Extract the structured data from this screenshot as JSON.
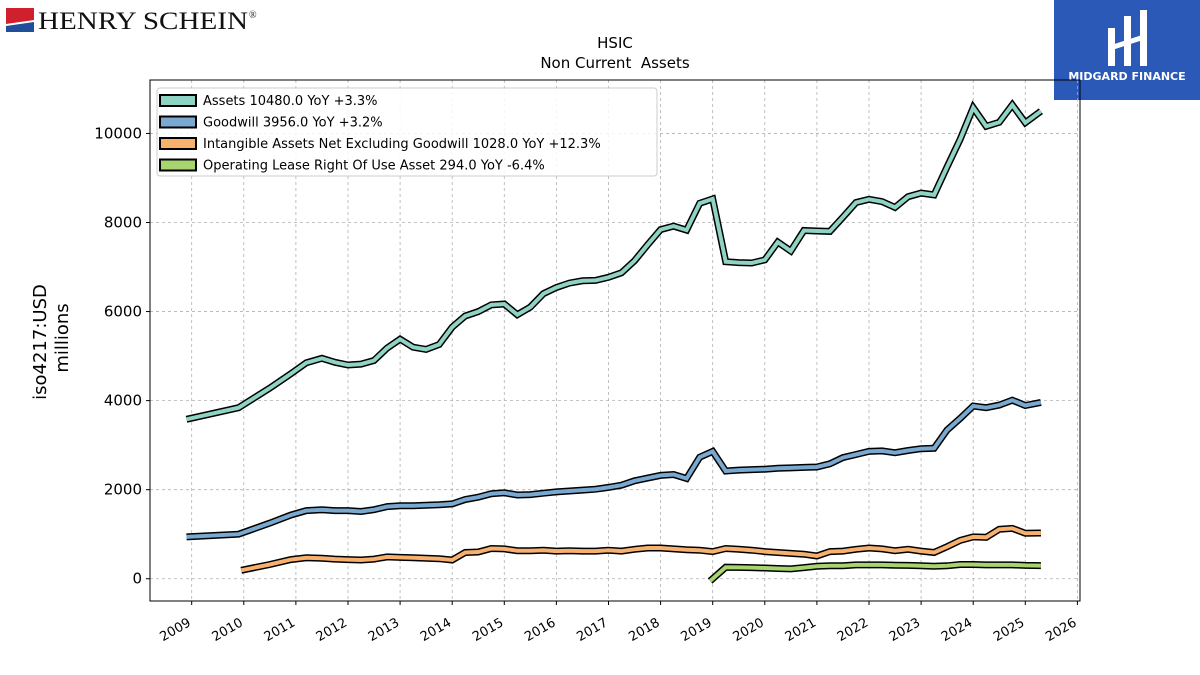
{
  "branding": {
    "company_logo_text": "HENRY SCHEIN",
    "registered_mark": "®",
    "company_logo_colors": [
      "#d0202e",
      "#1f4e9a",
      "#111111"
    ],
    "watermark_logo_text": "MIDGARD FINANCE",
    "watermark_bg": "#2b59b8"
  },
  "chart_data": {
    "type": "line",
    "title": "HSIC",
    "subtitle": "Non Current  Assets",
    "ylabel": "iso4217:USD",
    "ylabel2": "millions",
    "xlabel": "",
    "xlim": [
      2008.2,
      2026.05
    ],
    "ylim": [
      -500,
      11200
    ],
    "yticks": [
      0,
      2000,
      4000,
      6000,
      8000,
      10000
    ],
    "xticks": [
      2009,
      2010,
      2011,
      2012,
      2013,
      2014,
      2015,
      2016,
      2017,
      2018,
      2019,
      2020,
      2021,
      2022,
      2023,
      2024,
      2025,
      2026
    ],
    "grid": true,
    "legend_position": "top-left",
    "series": [
      {
        "name": "Assets",
        "legend": "Assets  10480.0 YoY +3.3%",
        "color": "#8ed3c4",
        "points": [
          [
            2008.9,
            3580
          ],
          [
            2009.9,
            3840
          ],
          [
            2010.5,
            4280
          ],
          [
            2010.9,
            4600
          ],
          [
            2011.2,
            4850
          ],
          [
            2011.5,
            4950
          ],
          [
            2011.75,
            4860
          ],
          [
            2012.0,
            4800
          ],
          [
            2012.25,
            4820
          ],
          [
            2012.5,
            4900
          ],
          [
            2012.75,
            5180
          ],
          [
            2013.0,
            5380
          ],
          [
            2013.25,
            5200
          ],
          [
            2013.5,
            5150
          ],
          [
            2013.75,
            5260
          ],
          [
            2014.0,
            5650
          ],
          [
            2014.25,
            5900
          ],
          [
            2014.5,
            6000
          ],
          [
            2014.75,
            6150
          ],
          [
            2015.0,
            6170
          ],
          [
            2015.25,
            5930
          ],
          [
            2015.5,
            6100
          ],
          [
            2015.75,
            6400
          ],
          [
            2016.0,
            6540
          ],
          [
            2016.25,
            6640
          ],
          [
            2016.5,
            6690
          ],
          [
            2016.75,
            6700
          ],
          [
            2017.0,
            6770
          ],
          [
            2017.25,
            6870
          ],
          [
            2017.5,
            7140
          ],
          [
            2017.75,
            7500
          ],
          [
            2018.0,
            7840
          ],
          [
            2018.25,
            7920
          ],
          [
            2018.5,
            7830
          ],
          [
            2018.75,
            8430
          ],
          [
            2019.0,
            8530
          ],
          [
            2019.25,
            7120
          ],
          [
            2019.5,
            7100
          ],
          [
            2019.75,
            7090
          ],
          [
            2020.0,
            7160
          ],
          [
            2020.25,
            7560
          ],
          [
            2020.5,
            7360
          ],
          [
            2020.75,
            7820
          ],
          [
            2021.0,
            7810
          ],
          [
            2021.25,
            7800
          ],
          [
            2021.5,
            8120
          ],
          [
            2021.75,
            8450
          ],
          [
            2022.0,
            8520
          ],
          [
            2022.25,
            8470
          ],
          [
            2022.5,
            8340
          ],
          [
            2022.75,
            8580
          ],
          [
            2023.0,
            8660
          ],
          [
            2023.25,
            8620
          ],
          [
            2023.5,
            9250
          ],
          [
            2023.75,
            9870
          ],
          [
            2024.0,
            10580
          ],
          [
            2024.25,
            10160
          ],
          [
            2024.5,
            10250
          ],
          [
            2024.75,
            10640
          ],
          [
            2025.0,
            10240
          ],
          [
            2025.3,
            10500
          ]
        ]
      },
      {
        "name": "Goodwill",
        "legend": "Goodwill  3956.0 YoY +3.2%",
        "color": "#79a9d1",
        "points": [
          [
            2008.9,
            940
          ],
          [
            2009.9,
            1000
          ],
          [
            2010.5,
            1250
          ],
          [
            2010.9,
            1430
          ],
          [
            2011.2,
            1530
          ],
          [
            2011.5,
            1550
          ],
          [
            2011.75,
            1530
          ],
          [
            2012.0,
            1530
          ],
          [
            2012.25,
            1510
          ],
          [
            2012.5,
            1550
          ],
          [
            2012.75,
            1620
          ],
          [
            2013.0,
            1640
          ],
          [
            2013.25,
            1640
          ],
          [
            2013.5,
            1650
          ],
          [
            2013.75,
            1660
          ],
          [
            2014.0,
            1680
          ],
          [
            2014.25,
            1780
          ],
          [
            2014.5,
            1830
          ],
          [
            2014.75,
            1910
          ],
          [
            2015.0,
            1930
          ],
          [
            2015.25,
            1880
          ],
          [
            2015.5,
            1890
          ],
          [
            2015.75,
            1920
          ],
          [
            2016.0,
            1950
          ],
          [
            2016.25,
            1970
          ],
          [
            2016.5,
            1990
          ],
          [
            2016.75,
            2010
          ],
          [
            2017.0,
            2050
          ],
          [
            2017.25,
            2100
          ],
          [
            2017.5,
            2200
          ],
          [
            2017.75,
            2260
          ],
          [
            2018.0,
            2320
          ],
          [
            2018.25,
            2340
          ],
          [
            2018.5,
            2250
          ],
          [
            2018.75,
            2730
          ],
          [
            2019.0,
            2860
          ],
          [
            2019.25,
            2420
          ],
          [
            2019.5,
            2440
          ],
          [
            2019.75,
            2450
          ],
          [
            2020.0,
            2460
          ],
          [
            2020.25,
            2480
          ],
          [
            2020.5,
            2490
          ],
          [
            2020.75,
            2500
          ],
          [
            2021.0,
            2510
          ],
          [
            2021.25,
            2580
          ],
          [
            2021.5,
            2720
          ],
          [
            2021.75,
            2790
          ],
          [
            2022.0,
            2860
          ],
          [
            2022.25,
            2870
          ],
          [
            2022.5,
            2830
          ],
          [
            2022.75,
            2880
          ],
          [
            2023.0,
            2920
          ],
          [
            2023.25,
            2930
          ],
          [
            2023.5,
            3340
          ],
          [
            2023.75,
            3600
          ],
          [
            2024.0,
            3880
          ],
          [
            2024.25,
            3840
          ],
          [
            2024.5,
            3900
          ],
          [
            2024.75,
            4010
          ],
          [
            2025.0,
            3890
          ],
          [
            2025.3,
            3960
          ]
        ]
      },
      {
        "name": "Intangible Assets Net Excluding Goodwill",
        "legend": "Intangible Assets Net Excluding Goodwill  1028.0 YoY +12.3%",
        "color": "#f7b06e",
        "points": [
          [
            2009.95,
            190
          ],
          [
            2010.5,
            320
          ],
          [
            2010.9,
            430
          ],
          [
            2011.2,
            470
          ],
          [
            2011.5,
            460
          ],
          [
            2011.75,
            440
          ],
          [
            2012.0,
            430
          ],
          [
            2012.25,
            420
          ],
          [
            2012.5,
            440
          ],
          [
            2012.75,
            490
          ],
          [
            2013.0,
            480
          ],
          [
            2013.25,
            470
          ],
          [
            2013.5,
            460
          ],
          [
            2013.75,
            450
          ],
          [
            2014.0,
            420
          ],
          [
            2014.25,
            590
          ],
          [
            2014.5,
            600
          ],
          [
            2014.75,
            680
          ],
          [
            2015.0,
            670
          ],
          [
            2015.25,
            630
          ],
          [
            2015.5,
            630
          ],
          [
            2015.75,
            640
          ],
          [
            2016.0,
            620
          ],
          [
            2016.25,
            630
          ],
          [
            2016.5,
            620
          ],
          [
            2016.75,
            620
          ],
          [
            2017.0,
            640
          ],
          [
            2017.25,
            620
          ],
          [
            2017.5,
            660
          ],
          [
            2017.75,
            690
          ],
          [
            2018.0,
            690
          ],
          [
            2018.25,
            670
          ],
          [
            2018.5,
            650
          ],
          [
            2018.75,
            640
          ],
          [
            2019.0,
            610
          ],
          [
            2019.25,
            680
          ],
          [
            2019.5,
            660
          ],
          [
            2019.75,
            640
          ],
          [
            2020.0,
            610
          ],
          [
            2020.25,
            590
          ],
          [
            2020.5,
            570
          ],
          [
            2020.75,
            550
          ],
          [
            2021.0,
            510
          ],
          [
            2021.25,
            610
          ],
          [
            2021.5,
            620
          ],
          [
            2021.75,
            660
          ],
          [
            2022.0,
            690
          ],
          [
            2022.25,
            670
          ],
          [
            2022.5,
            630
          ],
          [
            2022.75,
            660
          ],
          [
            2023.0,
            620
          ],
          [
            2023.25,
            590
          ],
          [
            2023.5,
            720
          ],
          [
            2023.75,
            860
          ],
          [
            2024.0,
            940
          ],
          [
            2024.25,
            930
          ],
          [
            2024.5,
            1110
          ],
          [
            2024.75,
            1130
          ],
          [
            2025.0,
            1020
          ],
          [
            2025.3,
            1028
          ]
        ]
      },
      {
        "name": "Operating Lease Right Of Use Asset",
        "legend": "Operating Lease Right Of Use Asset  294.0 YoY -6.4%",
        "color": "#a8d46f",
        "points": [
          [
            2018.95,
            -50
          ],
          [
            2019.25,
            260
          ],
          [
            2019.5,
            255
          ],
          [
            2019.75,
            250
          ],
          [
            2020.0,
            240
          ],
          [
            2020.25,
            230
          ],
          [
            2020.5,
            220
          ],
          [
            2020.75,
            250
          ],
          [
            2021.0,
            280
          ],
          [
            2021.25,
            290
          ],
          [
            2021.5,
            290
          ],
          [
            2021.75,
            310
          ],
          [
            2022.0,
            310
          ],
          [
            2022.25,
            310
          ],
          [
            2022.5,
            305
          ],
          [
            2022.75,
            300
          ],
          [
            2023.0,
            290
          ],
          [
            2023.25,
            280
          ],
          [
            2023.5,
            290
          ],
          [
            2023.75,
            320
          ],
          [
            2024.0,
            320
          ],
          [
            2024.25,
            310
          ],
          [
            2024.5,
            310
          ],
          [
            2024.75,
            310
          ],
          [
            2025.0,
            300
          ],
          [
            2025.3,
            294
          ]
        ]
      }
    ]
  }
}
